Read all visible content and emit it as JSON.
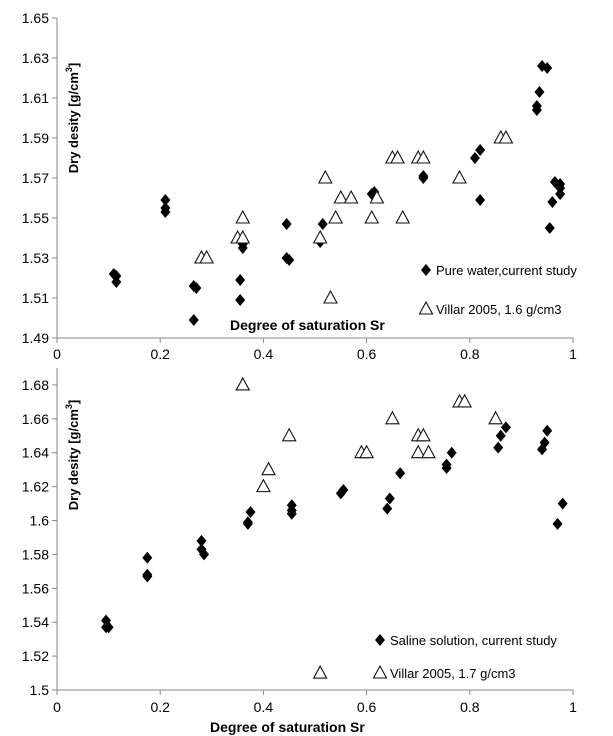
{
  "chart_data": [
    {
      "type": "scatter",
      "xlabel": "Degree of saturation Sr",
      "ylabel": "Dry desity  [g/cm",
      "ylabel_sup": "3",
      "ylabel_tail": "]",
      "xlim": [
        0,
        1
      ],
      "ylim": [
        1.49,
        1.65
      ],
      "xticks": [
        "0",
        "0.2",
        "0.4",
        "0.6",
        "0.8",
        "1"
      ],
      "yticks": [
        "1.49",
        "1.51",
        "1.53",
        "1.55",
        "1.57",
        "1.59",
        "1.61",
        "1.63",
        "1.65"
      ],
      "grid": false,
      "legend_position": "bottom-right",
      "series": [
        {
          "name": "Pure water,current study",
          "marker": "filled-diamond",
          "points": [
            [
              0.11,
              1.522
            ],
            [
              0.115,
              1.521
            ],
            [
              0.115,
              1.518
            ],
            [
              0.21,
              1.559
            ],
            [
              0.21,
              1.555
            ],
            [
              0.21,
              1.553
            ],
            [
              0.265,
              1.516
            ],
            [
              0.27,
              1.515
            ],
            [
              0.265,
              1.499
            ],
            [
              0.355,
              1.519
            ],
            [
              0.355,
              1.509
            ],
            [
              0.36,
              1.537
            ],
            [
              0.36,
              1.535
            ],
            [
              0.445,
              1.547
            ],
            [
              0.445,
              1.53
            ],
            [
              0.45,
              1.529
            ],
            [
              0.51,
              1.538
            ],
            [
              0.515,
              1.547
            ],
            [
              0.61,
              1.562
            ],
            [
              0.615,
              1.563
            ],
            [
              0.71,
              1.571
            ],
            [
              0.71,
              1.57
            ],
            [
              0.81,
              1.58
            ],
            [
              0.82,
              1.584
            ],
            [
              0.82,
              1.559
            ],
            [
              0.93,
              1.606
            ],
            [
              0.93,
              1.604
            ],
            [
              0.935,
              1.613
            ],
            [
              0.94,
              1.626
            ],
            [
              0.95,
              1.625
            ],
            [
              0.955,
              1.545
            ],
            [
              0.96,
              1.558
            ],
            [
              0.965,
              1.568
            ],
            [
              0.975,
              1.565
            ],
            [
              0.975,
              1.567
            ],
            [
              0.975,
              1.562
            ]
          ]
        },
        {
          "name": "Villar 2005, 1.6 g/cm3",
          "marker": "open-triangle",
          "points": [
            [
              0.28,
              1.53
            ],
            [
              0.29,
              1.53
            ],
            [
              0.35,
              1.54
            ],
            [
              0.36,
              1.54
            ],
            [
              0.36,
              1.55
            ],
            [
              0.51,
              1.54
            ],
            [
              0.52,
              1.57
            ],
            [
              0.53,
              1.51
            ],
            [
              0.54,
              1.55
            ],
            [
              0.55,
              1.56
            ],
            [
              0.57,
              1.56
            ],
            [
              0.61,
              1.55
            ],
            [
              0.62,
              1.56
            ],
            [
              0.65,
              1.58
            ],
            [
              0.66,
              1.58
            ],
            [
              0.67,
              1.55
            ],
            [
              0.7,
              1.58
            ],
            [
              0.71,
              1.58
            ],
            [
              0.78,
              1.57
            ],
            [
              0.86,
              1.59
            ],
            [
              0.87,
              1.59
            ]
          ]
        }
      ]
    },
    {
      "type": "scatter",
      "xlabel": "Degree of saturation Sr",
      "ylabel": "Dry desity  [g/cm",
      "ylabel_sup": "3",
      "ylabel_tail": "]",
      "xlim": [
        0,
        1
      ],
      "ylim": [
        1.5,
        1.69
      ],
      "xticks": [
        "0",
        "0.2",
        "0.4",
        "0.6",
        "0.8",
        "1"
      ],
      "yticks": [
        "1.5",
        "1.52",
        "1.54",
        "1.56",
        "1.58",
        "1.6",
        "1.62",
        "1.64",
        "1.66",
        "1.68"
      ],
      "grid": false,
      "legend_position": "bottom-right",
      "series": [
        {
          "name": "Saline solution, current study",
          "marker": "filled-diamond",
          "points": [
            [
              0.095,
              1.541
            ],
            [
              0.095,
              1.537
            ],
            [
              0.1,
              1.537
            ],
            [
              0.175,
              1.578
            ],
            [
              0.175,
              1.568
            ],
            [
              0.175,
              1.567
            ],
            [
              0.28,
              1.588
            ],
            [
              0.28,
              1.583
            ],
            [
              0.285,
              1.58
            ],
            [
              0.37,
              1.599
            ],
            [
              0.37,
              1.598
            ],
            [
              0.375,
              1.605
            ],
            [
              0.455,
              1.609
            ],
            [
              0.455,
              1.604
            ],
            [
              0.455,
              1.606
            ],
            [
              0.55,
              1.616
            ],
            [
              0.555,
              1.618
            ],
            [
              0.64,
              1.607
            ],
            [
              0.645,
              1.613
            ],
            [
              0.665,
              1.628
            ],
            [
              0.755,
              1.631
            ],
            [
              0.755,
              1.633
            ],
            [
              0.765,
              1.64
            ],
            [
              0.855,
              1.643
            ],
            [
              0.86,
              1.65
            ],
            [
              0.87,
              1.655
            ],
            [
              0.94,
              1.642
            ],
            [
              0.945,
              1.646
            ],
            [
              0.95,
              1.653
            ],
            [
              0.97,
              1.598
            ],
            [
              0.98,
              1.61
            ]
          ]
        },
        {
          "name": "Villar 2005, 1.7 g/cm3",
          "marker": "open-triangle",
          "points": [
            [
              0.36,
              1.68
            ],
            [
              0.4,
              1.62
            ],
            [
              0.41,
              1.63
            ],
            [
              0.45,
              1.65
            ],
            [
              0.51,
              1.51
            ],
            [
              0.59,
              1.64
            ],
            [
              0.6,
              1.64
            ],
            [
              0.65,
              1.66
            ],
            [
              0.7,
              1.64
            ],
            [
              0.7,
              1.65
            ],
            [
              0.71,
              1.65
            ],
            [
              0.72,
              1.64
            ],
            [
              0.78,
              1.67
            ],
            [
              0.79,
              1.67
            ],
            [
              0.85,
              1.66
            ]
          ]
        }
      ]
    }
  ]
}
